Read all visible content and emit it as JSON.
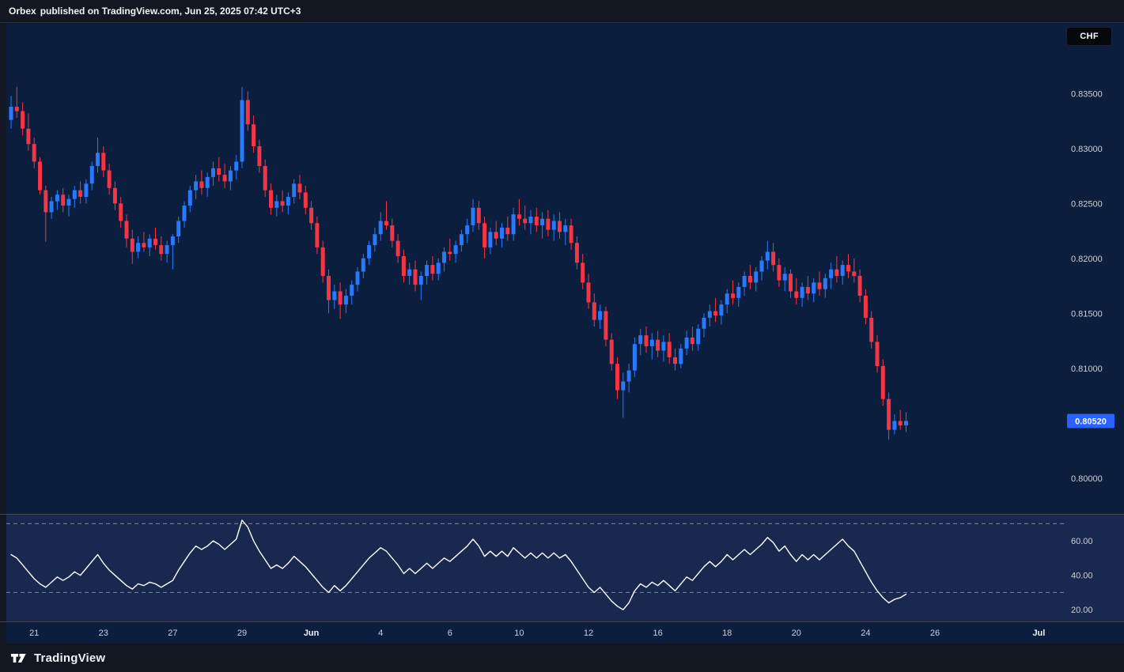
{
  "header": {
    "publisher": "Orbex",
    "attribution": "published on TradingView.com, Jun 25, 2025 07:42 UTC+3",
    "currency_badge": "CHF"
  },
  "footer": {
    "brand": "TradingView"
  },
  "colors": {
    "up": "#2979ff",
    "down": "#f23645",
    "rsi_line": "#ffffff",
    "badge_bg": "#2962ff",
    "axis_text": "#cdd1db",
    "month_text": "#eef1f6",
    "main_bg": "#0c1e3d",
    "rsi_bg": "#18284e",
    "divider": "#434651",
    "band_dash": "#9b9eac"
  },
  "chart_data": {
    "type": "candlestick",
    "quote_currency": "CHF",
    "grid": "off",
    "panes": [
      "price",
      "rsi"
    ],
    "price_axis": {
      "range": [
        0.79675,
        0.84135
      ],
      "ticks": [
        {
          "label": "0.83500",
          "value": 0.835
        },
        {
          "label": "0.83000",
          "value": 0.83
        },
        {
          "label": "0.82500",
          "value": 0.825
        },
        {
          "label": "0.82000",
          "value": 0.82
        },
        {
          "label": "0.81500",
          "value": 0.815
        },
        {
          "label": "0.81000",
          "value": 0.81
        },
        {
          "label": "0.80000",
          "value": 0.8
        }
      ],
      "last_price": {
        "label": "0.80520",
        "value": 0.8052
      }
    },
    "time_axis": {
      "ticks": [
        {
          "label": "21",
          "index": 4
        },
        {
          "label": "23",
          "index": 16
        },
        {
          "label": "27",
          "index": 28
        },
        {
          "label": "29",
          "index": 40
        },
        {
          "label": "Jun",
          "index": 52,
          "month": true
        },
        {
          "label": "4",
          "index": 64
        },
        {
          "label": "6",
          "index": 76
        },
        {
          "label": "10",
          "index": 88
        },
        {
          "label": "12",
          "index": 100
        },
        {
          "label": "16",
          "index": 112
        },
        {
          "label": "18",
          "index": 124
        },
        {
          "label": "20",
          "index": 136
        },
        {
          "label": "24",
          "index": 148
        },
        {
          "label": "26",
          "index": 160
        },
        {
          "label": "Jul",
          "index": 178,
          "month": true
        }
      ]
    },
    "candles": [
      [
        0.8326,
        0.8348,
        0.8318,
        0.8338
      ],
      [
        0.8338,
        0.8356,
        0.8328,
        0.8334
      ],
      [
        0.8334,
        0.8342,
        0.8312,
        0.8318
      ],
      [
        0.8318,
        0.8332,
        0.8298,
        0.8304
      ],
      [
        0.8304,
        0.831,
        0.8282,
        0.8288
      ],
      [
        0.8288,
        0.8292,
        0.8258,
        0.8262
      ],
      [
        0.8262,
        0.8266,
        0.8215,
        0.8242
      ],
      [
        0.8242,
        0.8256,
        0.8236,
        0.8252
      ],
      [
        0.8252,
        0.8262,
        0.8244,
        0.8258
      ],
      [
        0.8258,
        0.8264,
        0.8242,
        0.8248
      ],
      [
        0.8248,
        0.8258,
        0.8238,
        0.8254
      ],
      [
        0.8254,
        0.8266,
        0.8246,
        0.8262
      ],
      [
        0.8262,
        0.827,
        0.825,
        0.8256
      ],
      [
        0.8256,
        0.8272,
        0.825,
        0.8268
      ],
      [
        0.8268,
        0.8288,
        0.8262,
        0.8284
      ],
      [
        0.8284,
        0.831,
        0.8278,
        0.8296
      ],
      [
        0.8296,
        0.8302,
        0.8274,
        0.828
      ],
      [
        0.828,
        0.8286,
        0.8258,
        0.8264
      ],
      [
        0.8264,
        0.827,
        0.8244,
        0.825
      ],
      [
        0.825,
        0.8256,
        0.8228,
        0.8234
      ],
      [
        0.8234,
        0.824,
        0.821,
        0.8218
      ],
      [
        0.8218,
        0.8226,
        0.8195,
        0.8206
      ],
      [
        0.8206,
        0.822,
        0.82,
        0.8214
      ],
      [
        0.8214,
        0.8224,
        0.8206,
        0.821
      ],
      [
        0.821,
        0.8222,
        0.8202,
        0.8218
      ],
      [
        0.8218,
        0.8228,
        0.8208,
        0.8212
      ],
      [
        0.8212,
        0.822,
        0.8198,
        0.8204
      ],
      [
        0.8204,
        0.8216,
        0.8196,
        0.8212
      ],
      [
        0.8212,
        0.8222,
        0.819,
        0.822
      ],
      [
        0.822,
        0.8238,
        0.8214,
        0.8234
      ],
      [
        0.8234,
        0.8252,
        0.8228,
        0.8248
      ],
      [
        0.8248,
        0.8266,
        0.8242,
        0.8262
      ],
      [
        0.8262,
        0.8276,
        0.8254,
        0.827
      ],
      [
        0.827,
        0.828,
        0.8258,
        0.8264
      ],
      [
        0.8264,
        0.8278,
        0.8256,
        0.8274
      ],
      [
        0.8274,
        0.8288,
        0.8266,
        0.8282
      ],
      [
        0.8282,
        0.8292,
        0.827,
        0.8276
      ],
      [
        0.8276,
        0.8286,
        0.8264,
        0.827
      ],
      [
        0.827,
        0.8284,
        0.8262,
        0.828
      ],
      [
        0.828,
        0.8294,
        0.8272,
        0.8288
      ],
      [
        0.8288,
        0.8356,
        0.8282,
        0.8344
      ],
      [
        0.8344,
        0.8352,
        0.8316,
        0.8322
      ],
      [
        0.8322,
        0.833,
        0.8296,
        0.8302
      ],
      [
        0.8302,
        0.8308,
        0.8278,
        0.8284
      ],
      [
        0.8284,
        0.829,
        0.8256,
        0.8262
      ],
      [
        0.8262,
        0.8268,
        0.824,
        0.8246
      ],
      [
        0.8246,
        0.8258,
        0.8238,
        0.8252
      ],
      [
        0.8252,
        0.8262,
        0.8242,
        0.8248
      ],
      [
        0.8248,
        0.826,
        0.824,
        0.8256
      ],
      [
        0.8256,
        0.8272,
        0.825,
        0.8268
      ],
      [
        0.8268,
        0.8276,
        0.8254,
        0.826
      ],
      [
        0.826,
        0.8266,
        0.824,
        0.8246
      ],
      [
        0.8246,
        0.8252,
        0.8226,
        0.8232
      ],
      [
        0.8232,
        0.8238,
        0.8204,
        0.821
      ],
      [
        0.821,
        0.8216,
        0.8178,
        0.8184
      ],
      [
        0.8184,
        0.819,
        0.815,
        0.8162
      ],
      [
        0.8162,
        0.8176,
        0.8154,
        0.817
      ],
      [
        0.817,
        0.8178,
        0.8145,
        0.8158
      ],
      [
        0.8158,
        0.8172,
        0.815,
        0.8166
      ],
      [
        0.8166,
        0.818,
        0.8158,
        0.8176
      ],
      [
        0.8176,
        0.8192,
        0.817,
        0.8188
      ],
      [
        0.8188,
        0.8204,
        0.8182,
        0.82
      ],
      [
        0.82,
        0.8216,
        0.8194,
        0.8212
      ],
      [
        0.8212,
        0.8228,
        0.8206,
        0.8222
      ],
      [
        0.8222,
        0.8242,
        0.8216,
        0.8234
      ],
      [
        0.8234,
        0.8252,
        0.8226,
        0.823
      ],
      [
        0.823,
        0.8236,
        0.821,
        0.8216
      ],
      [
        0.8216,
        0.8222,
        0.8196,
        0.8202
      ],
      [
        0.8202,
        0.8208,
        0.8178,
        0.8184
      ],
      [
        0.8184,
        0.8196,
        0.8176,
        0.819
      ],
      [
        0.819,
        0.8198,
        0.817,
        0.8176
      ],
      [
        0.8176,
        0.8188,
        0.8162,
        0.8184
      ],
      [
        0.8184,
        0.8198,
        0.8176,
        0.8194
      ],
      [
        0.8194,
        0.8202,
        0.818,
        0.8186
      ],
      [
        0.8186,
        0.82,
        0.818,
        0.8196
      ],
      [
        0.8196,
        0.821,
        0.8188,
        0.8206
      ],
      [
        0.8206,
        0.8218,
        0.8198,
        0.8204
      ],
      [
        0.8204,
        0.8216,
        0.8196,
        0.8212
      ],
      [
        0.8212,
        0.8226,
        0.8206,
        0.8222
      ],
      [
        0.8222,
        0.8236,
        0.8214,
        0.823
      ],
      [
        0.823,
        0.8254,
        0.8224,
        0.8246
      ],
      [
        0.8246,
        0.8252,
        0.8226,
        0.8232
      ],
      [
        0.8232,
        0.8238,
        0.82,
        0.821
      ],
      [
        0.821,
        0.8228,
        0.8204,
        0.8224
      ],
      [
        0.8224,
        0.8234,
        0.8212,
        0.8218
      ],
      [
        0.8218,
        0.8232,
        0.821,
        0.8228
      ],
      [
        0.8228,
        0.8238,
        0.8216,
        0.8222
      ],
      [
        0.8222,
        0.8246,
        0.8216,
        0.824
      ],
      [
        0.824,
        0.8254,
        0.823,
        0.8236
      ],
      [
        0.8236,
        0.8248,
        0.8226,
        0.8232
      ],
      [
        0.8232,
        0.8244,
        0.8222,
        0.8238
      ],
      [
        0.8238,
        0.8246,
        0.8224,
        0.823
      ],
      [
        0.823,
        0.8242,
        0.8218,
        0.8236
      ],
      [
        0.8236,
        0.8244,
        0.822,
        0.8226
      ],
      [
        0.8226,
        0.824,
        0.8216,
        0.8234
      ],
      [
        0.8234,
        0.8242,
        0.8218,
        0.8224
      ],
      [
        0.8224,
        0.8236,
        0.8212,
        0.823
      ],
      [
        0.823,
        0.8236,
        0.8208,
        0.8214
      ],
      [
        0.8214,
        0.822,
        0.819,
        0.8196
      ],
      [
        0.8196,
        0.8204,
        0.8172,
        0.8178
      ],
      [
        0.8178,
        0.8186,
        0.8154,
        0.816
      ],
      [
        0.816,
        0.8168,
        0.8138,
        0.8144
      ],
      [
        0.8144,
        0.8158,
        0.8136,
        0.8152
      ],
      [
        0.8152,
        0.8156,
        0.812,
        0.8126
      ],
      [
        0.8126,
        0.8132,
        0.8098,
        0.8104
      ],
      [
        0.8104,
        0.811,
        0.8072,
        0.808
      ],
      [
        0.808,
        0.8096,
        0.8055,
        0.8088
      ],
      [
        0.8088,
        0.8104,
        0.8078,
        0.8098
      ],
      [
        0.8098,
        0.8128,
        0.8092,
        0.8122
      ],
      [
        0.8122,
        0.8136,
        0.8112,
        0.813
      ],
      [
        0.813,
        0.8138,
        0.8114,
        0.812
      ],
      [
        0.812,
        0.8132,
        0.8108,
        0.8126
      ],
      [
        0.8126,
        0.8134,
        0.811,
        0.8116
      ],
      [
        0.8116,
        0.813,
        0.8106,
        0.8124
      ],
      [
        0.8124,
        0.8132,
        0.8104,
        0.811
      ],
      [
        0.811,
        0.8118,
        0.8098,
        0.8104
      ],
      [
        0.8104,
        0.8122,
        0.81,
        0.8118
      ],
      [
        0.8118,
        0.8134,
        0.8112,
        0.8128
      ],
      [
        0.8128,
        0.8138,
        0.8116,
        0.8122
      ],
      [
        0.8122,
        0.814,
        0.8116,
        0.8136
      ],
      [
        0.8136,
        0.815,
        0.8128,
        0.8146
      ],
      [
        0.8146,
        0.8158,
        0.8138,
        0.8152
      ],
      [
        0.8152,
        0.8164,
        0.8142,
        0.8148
      ],
      [
        0.8148,
        0.8162,
        0.814,
        0.8158
      ],
      [
        0.8158,
        0.8172,
        0.815,
        0.8168
      ],
      [
        0.8168,
        0.818,
        0.8158,
        0.8164
      ],
      [
        0.8164,
        0.8178,
        0.8156,
        0.8174
      ],
      [
        0.8174,
        0.8188,
        0.8166,
        0.8184
      ],
      [
        0.8184,
        0.8194,
        0.8172,
        0.8178
      ],
      [
        0.8178,
        0.8192,
        0.817,
        0.8188
      ],
      [
        0.8188,
        0.8202,
        0.818,
        0.8198
      ],
      [
        0.8198,
        0.8216,
        0.819,
        0.8206
      ],
      [
        0.8206,
        0.8214,
        0.8188,
        0.8194
      ],
      [
        0.8194,
        0.82,
        0.8174,
        0.818
      ],
      [
        0.818,
        0.8192,
        0.817,
        0.8186
      ],
      [
        0.8186,
        0.819,
        0.8164,
        0.817
      ],
      [
        0.817,
        0.8182,
        0.8158,
        0.8164
      ],
      [
        0.8164,
        0.8178,
        0.8156,
        0.8174
      ],
      [
        0.8174,
        0.8184,
        0.8162,
        0.8168
      ],
      [
        0.8168,
        0.8182,
        0.816,
        0.8178
      ],
      [
        0.8178,
        0.8188,
        0.8166,
        0.8172
      ],
      [
        0.8172,
        0.8186,
        0.8164,
        0.8182
      ],
      [
        0.8182,
        0.8196,
        0.8172,
        0.819
      ],
      [
        0.819,
        0.8202,
        0.8178,
        0.8184
      ],
      [
        0.8184,
        0.8198,
        0.8176,
        0.8194
      ],
      [
        0.8194,
        0.8204,
        0.8182,
        0.8188
      ],
      [
        0.8188,
        0.82,
        0.8178,
        0.8184
      ],
      [
        0.8184,
        0.819,
        0.816,
        0.8166
      ],
      [
        0.8166,
        0.8172,
        0.814,
        0.8146
      ],
      [
        0.8146,
        0.8152,
        0.8118,
        0.8124
      ],
      [
        0.8124,
        0.813,
        0.8096,
        0.8102
      ],
      [
        0.8102,
        0.8108,
        0.8066,
        0.8072
      ],
      [
        0.8072,
        0.8078,
        0.8035,
        0.8044
      ],
      [
        0.8044,
        0.8058,
        0.804,
        0.8052
      ],
      [
        0.8052,
        0.8062,
        0.8044,
        0.8048
      ],
      [
        0.8048,
        0.806,
        0.8042,
        0.8052
      ]
    ],
    "indicator": {
      "name": "RSI",
      "range": [
        13.2,
        74.3
      ],
      "bands": [
        70,
        30
      ],
      "ticks": [
        {
          "label": "60.00",
          "value": 60
        },
        {
          "label": "40.00",
          "value": 40
        },
        {
          "label": "20.00",
          "value": 20
        }
      ],
      "values": [
        52,
        50,
        46,
        42,
        38,
        35,
        33,
        36,
        39,
        37,
        39,
        42,
        40,
        44,
        48,
        52,
        47,
        43,
        40,
        37,
        34,
        32,
        35,
        34,
        36,
        35,
        33,
        35,
        37,
        43,
        48,
        53,
        57,
        55,
        57,
        60,
        58,
        55,
        58,
        61,
        72,
        68,
        60,
        54,
        49,
        44,
        46,
        44,
        47,
        51,
        48,
        45,
        41,
        37,
        33,
        30,
        34,
        31,
        34,
        38,
        42,
        46,
        50,
        53,
        56,
        54,
        50,
        46,
        41,
        44,
        41,
        44,
        47,
        44,
        47,
        50,
        48,
        51,
        54,
        57,
        61,
        57,
        51,
        54,
        51,
        54,
        51,
        56,
        53,
        50,
        53,
        50,
        53,
        50,
        53,
        50,
        52,
        48,
        43,
        38,
        33,
        30,
        33,
        29,
        25,
        22,
        20,
        24,
        31,
        35,
        33,
        36,
        34,
        37,
        34,
        31,
        35,
        39,
        37,
        41,
        45,
        48,
        45,
        48,
        52,
        49,
        52,
        55,
        52,
        55,
        58,
        62,
        59,
        54,
        57,
        52,
        48,
        52,
        49,
        52,
        49,
        52,
        55,
        58,
        61,
        57,
        54,
        48,
        42,
        36,
        31,
        27,
        24,
        26,
        27,
        29
      ]
    }
  }
}
